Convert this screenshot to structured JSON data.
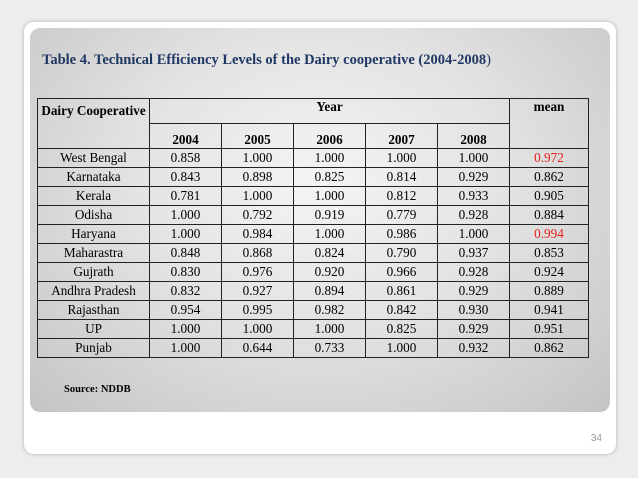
{
  "title": {
    "main": "Table 4. Technical Efficiency Levels of the Dairy cooperative (2004-2008",
    "close_paren": ")"
  },
  "table": {
    "header_dairy": "Dairy Cooperative",
    "header_year": "Year",
    "year_columns": [
      "2004",
      "2005",
      "2006",
      "2007",
      "2008"
    ],
    "header_mean": "mean",
    "rows": [
      {
        "name": "West Bengal",
        "values": [
          "0.858",
          "1.000",
          "1.000",
          "1.000",
          "1.000"
        ],
        "mean": "0.972",
        "mean_highlight": true
      },
      {
        "name": "Karnataka",
        "values": [
          "0.843",
          "0.898",
          "0.825",
          "0.814",
          "0.929"
        ],
        "mean": "0.862",
        "mean_highlight": false
      },
      {
        "name": "Kerala",
        "values": [
          "0.781",
          "1.000",
          "1.000",
          "0.812",
          "0.933"
        ],
        "mean": "0.905",
        "mean_highlight": false
      },
      {
        "name": "Odisha",
        "values": [
          "1.000",
          "0.792",
          "0.919",
          "0.779",
          "0.928"
        ],
        "mean": "0.884",
        "mean_highlight": false
      },
      {
        "name": "Haryana",
        "values": [
          "1.000",
          "0.984",
          "1.000",
          "0.986",
          "1.000"
        ],
        "mean": "0.994",
        "mean_highlight": true
      },
      {
        "name": "Maharastra",
        "values": [
          "0.848",
          "0.868",
          "0.824",
          "0.790",
          "0.937"
        ],
        "mean": "0.853",
        "mean_highlight": false
      },
      {
        "name": "Gujrath",
        "values": [
          "0.830",
          "0.976",
          "0.920",
          "0.966",
          "0.928"
        ],
        "mean": "0.924",
        "mean_highlight": false
      },
      {
        "name": "Andhra Pradesh",
        "values": [
          "0.832",
          "0.927",
          "0.894",
          "0.861",
          "0.929"
        ],
        "mean": "0.889",
        "mean_highlight": false
      },
      {
        "name": "Rajasthan",
        "values": [
          "0.954",
          "0.995",
          "0.982",
          "0.842",
          "0.930"
        ],
        "mean": "0.941",
        "mean_highlight": false
      },
      {
        "name": "UP",
        "values": [
          "1.000",
          "1.000",
          "1.000",
          "0.825",
          "0.929"
        ],
        "mean": "0.951",
        "mean_highlight": false
      },
      {
        "name": "Punjab",
        "values": [
          "1.000",
          "0.644",
          "0.733",
          "1.000",
          "0.932"
        ],
        "mean": "0.862",
        "mean_highlight": false
      }
    ]
  },
  "source": "Source: NDDB",
  "page_number": "34",
  "colors": {
    "title": "#1f3864",
    "highlight": "#e8221b"
  }
}
